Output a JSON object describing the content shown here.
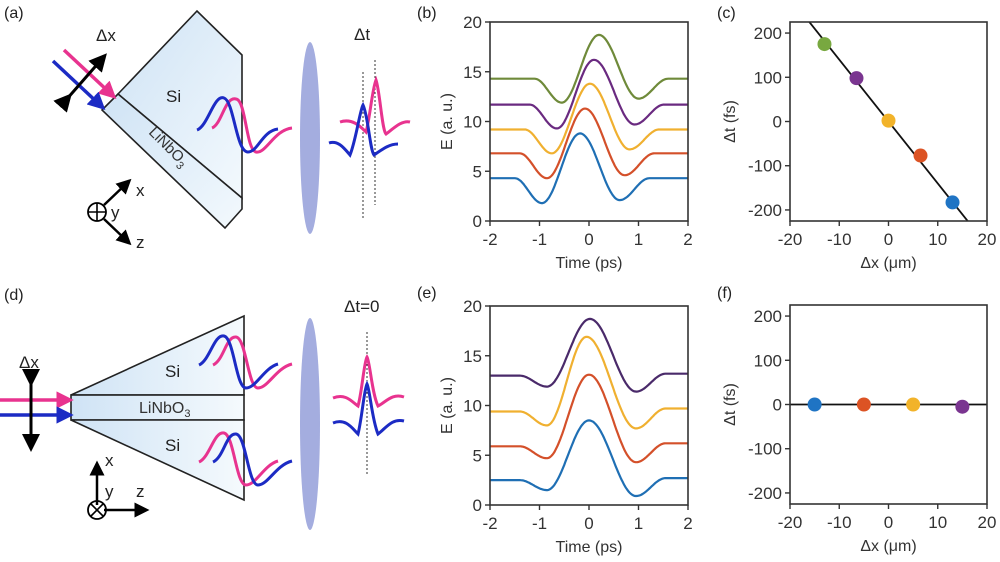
{
  "panels": {
    "a": {
      "label": "(a)",
      "dx_label": "Δx",
      "dt_label": "Δt",
      "si_label": "Si",
      "crystal_label": "LiNbO",
      "crystal_sub": "3",
      "axis_x": "x",
      "axis_y": "y",
      "axis_z": "z"
    },
    "d": {
      "label": "(d)",
      "dx_label": "Δx",
      "dt_label": "Δt=0",
      "si_top_label": "Si",
      "si_bottom_label": "Si",
      "crystal_label": "LiNbO",
      "crystal_sub": "3",
      "axis_x": "x",
      "axis_y": "y",
      "axis_z": "z"
    },
    "b": {
      "label": "(b)"
    },
    "c": {
      "label": "(c)"
    },
    "e": {
      "label": "(e)"
    },
    "f": {
      "label": "(f)"
    }
  },
  "colors": {
    "pink": "#e8338f",
    "blue": "#1c2bc4",
    "lens": "#a4addf",
    "crystal_fill": "#dcecf8"
  },
  "chart_data": [
    {
      "id": "b",
      "type": "line",
      "xlabel": "Time (ps)",
      "ylabel": "E (a. u.)",
      "xlim": [
        -2,
        2
      ],
      "ylim": [
        0,
        20
      ],
      "xticks": [
        -2,
        -1,
        0,
        1,
        2
      ],
      "yticks": [
        0,
        5,
        10,
        15,
        20
      ],
      "series": [
        {
          "name": "blue",
          "color": "#1f6fb4",
          "baseline": 4.3,
          "peak_t": -0.18,
          "peak": 8.8,
          "min1_t": -0.95,
          "min1": 1.8,
          "min2_t": 0.62,
          "min2": 2.1
        },
        {
          "name": "red",
          "color": "#d4502a",
          "baseline": 6.8,
          "peak_t": -0.08,
          "peak": 11.3,
          "min1_t": -0.85,
          "min1": 4.3,
          "min2_t": 0.72,
          "min2": 4.6
        },
        {
          "name": "yellow",
          "color": "#f0b030",
          "baseline": 9.2,
          "peak_t": 0.02,
          "peak": 13.8,
          "min1_t": -0.75,
          "min1": 6.8,
          "min2_t": 0.82,
          "min2": 7.2
        },
        {
          "name": "purple",
          "color": "#6a2a80",
          "baseline": 11.7,
          "peak_t": 0.1,
          "peak": 16.2,
          "min1_t": -0.65,
          "min1": 9.3,
          "min2_t": 0.92,
          "min2": 9.7
        },
        {
          "name": "green",
          "color": "#6f8a3a",
          "baseline": 14.3,
          "peak_t": 0.2,
          "peak": 18.7,
          "min1_t": -0.55,
          "min1": 11.9,
          "min2_t": 1.0,
          "min2": 12.3
        }
      ]
    },
    {
      "id": "c",
      "type": "scatter",
      "xlabel": "Δx (μm)",
      "ylabel": "Δt (fs)",
      "xlim": [
        -20,
        20
      ],
      "ylim": [
        -225,
        225
      ],
      "xticks": [
        -20,
        -10,
        0,
        10,
        20
      ],
      "yticks": [
        -200,
        -100,
        0,
        100,
        200
      ],
      "fit_line": {
        "slope": -14.0,
        "intercept": 0
      },
      "points": [
        {
          "x": -13,
          "y": 175,
          "color": "#78a840"
        },
        {
          "x": -6.5,
          "y": 98,
          "color": "#7a3590"
        },
        {
          "x": 0,
          "y": 2,
          "color": "#f2b32a"
        },
        {
          "x": 6.5,
          "y": -77,
          "color": "#dc5324"
        },
        {
          "x": 13,
          "y": -183,
          "color": "#1f74c4"
        }
      ]
    },
    {
      "id": "e",
      "type": "line",
      "xlabel": "Time (ps)",
      "ylabel": "E (a. u.)",
      "xlim": [
        -2,
        2
      ],
      "ylim": [
        0,
        20
      ],
      "xticks": [
        -2,
        -1,
        0,
        1,
        2
      ],
      "yticks": [
        0,
        5,
        10,
        15,
        20
      ],
      "series": [
        {
          "name": "blue",
          "color": "#1f6fb4",
          "baseline": 2.5,
          "peak_t": 0.0,
          "peak": 8.5,
          "min1_t": -0.85,
          "min1": 1.5,
          "min2_t": 0.95,
          "min2": 0.9,
          "end": 2.7
        },
        {
          "name": "red",
          "color": "#d4502a",
          "baseline": 5.9,
          "peak_t": 0.0,
          "peak": 13.1,
          "min1_t": -0.85,
          "min1": 4.7,
          "min2_t": 0.95,
          "min2": 4.3,
          "end": 6.2
        },
        {
          "name": "yellow",
          "color": "#f0b030",
          "baseline": 9.4,
          "peak_t": -0.05,
          "peak": 16.9,
          "min1_t": -0.85,
          "min1": 8.0,
          "min2_t": 0.95,
          "min2": 7.7,
          "end": 9.7
        },
        {
          "name": "purple",
          "color": "#4a2a6a",
          "baseline": 13.0,
          "peak_t": 0.02,
          "peak": 18.7,
          "min1_t": -0.85,
          "min1": 11.9,
          "min2_t": 0.95,
          "min2": 11.4,
          "end": 13.2
        }
      ]
    },
    {
      "id": "f",
      "type": "scatter",
      "xlabel": "Δx (μm)",
      "ylabel": "Δt (fs)",
      "xlim": [
        -20,
        20
      ],
      "ylim": [
        -225,
        225
      ],
      "xticks": [
        -20,
        -10,
        0,
        10,
        20
      ],
      "yticks": [
        -200,
        -100,
        0,
        100,
        200
      ],
      "fit_line": {
        "slope": 0,
        "intercept": 0
      },
      "points": [
        {
          "x": -15,
          "y": 0,
          "color": "#1f74c4"
        },
        {
          "x": -5,
          "y": 0,
          "color": "#dc5324"
        },
        {
          "x": 5,
          "y": 0,
          "color": "#f2b32a"
        },
        {
          "x": 15,
          "y": -5,
          "color": "#7a3590"
        }
      ]
    }
  ]
}
